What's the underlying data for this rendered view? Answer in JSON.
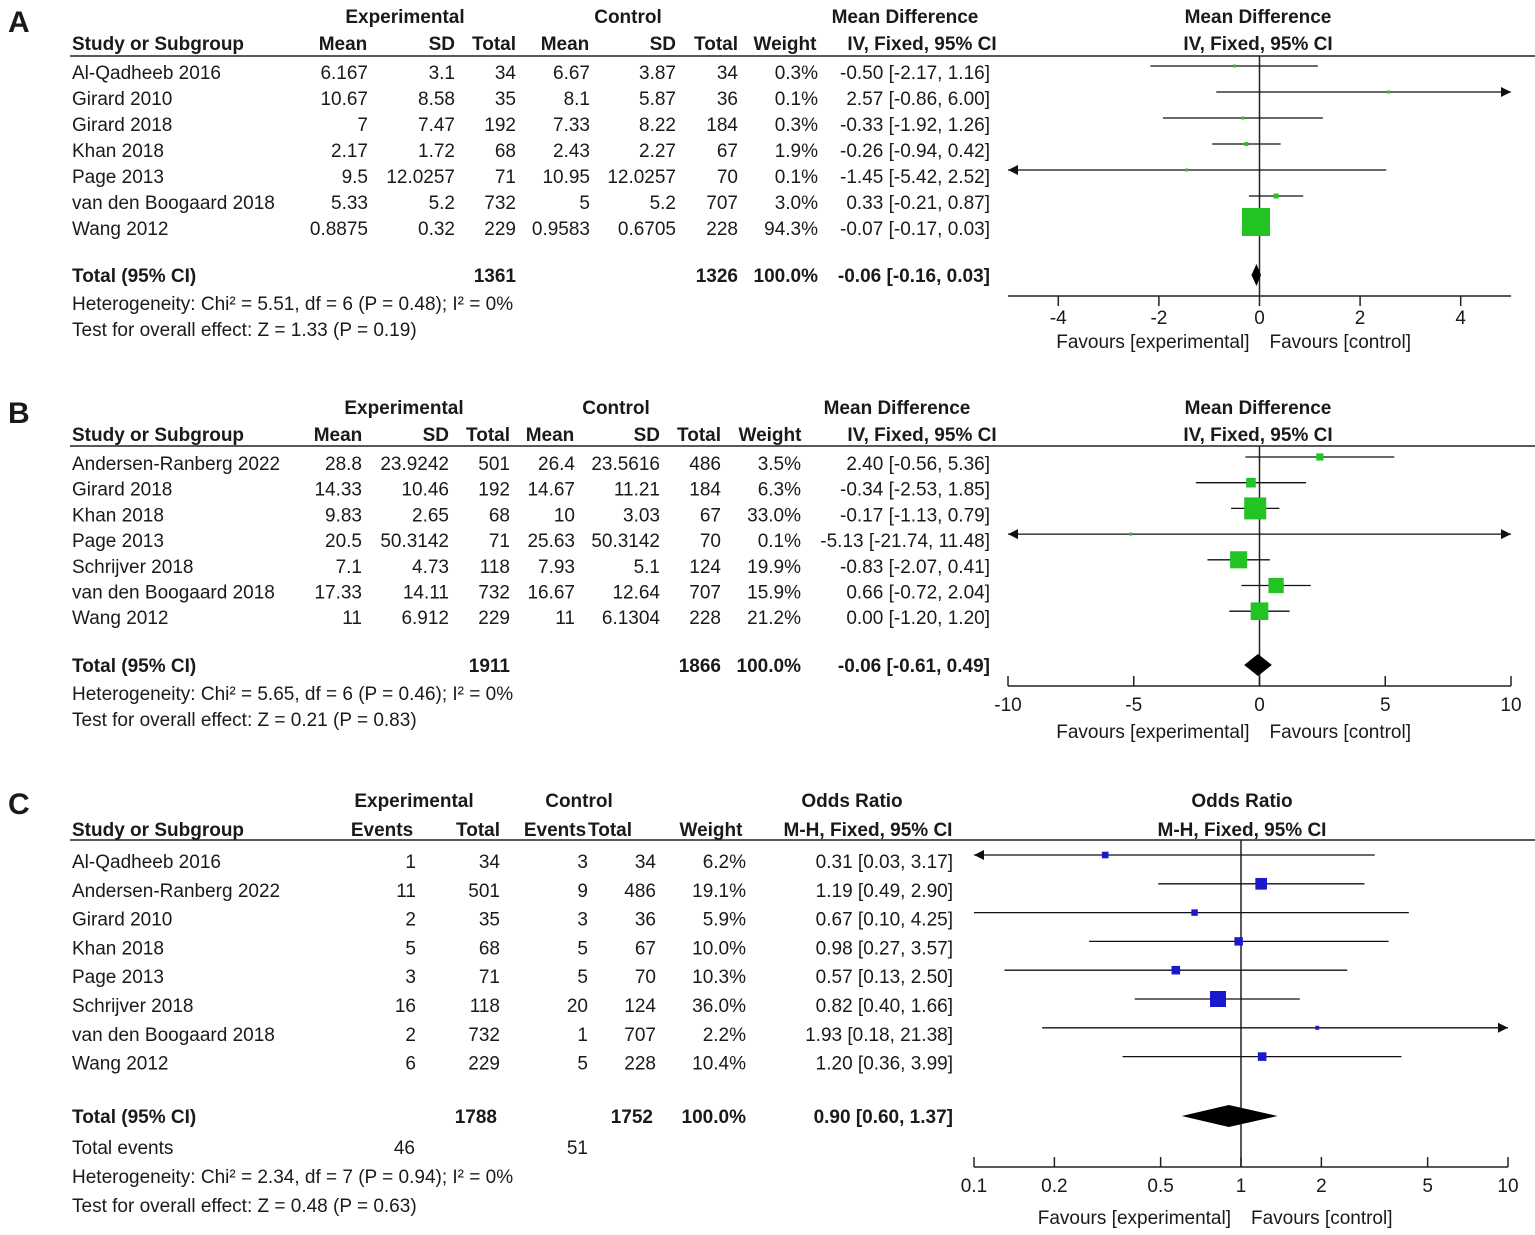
{
  "chart_data": [
    {
      "panel": "A",
      "type": "forest",
      "headers": {
        "group1": "Experimental",
        "group2": "Control",
        "table_effect": "Mean Difference",
        "plot_effect": "Mean Difference",
        "study": "Study or Subgroup",
        "cols": [
          "Mean",
          "SD",
          "Total",
          "Mean",
          "SD",
          "Total",
          "Weight",
          "IV, Fixed, 95% CI"
        ],
        "plot_method": "IV, Fixed, 95% CI"
      },
      "studies": [
        {
          "name": "Al-Qadheeb 2016",
          "cells": [
            "6.167",
            "3.1",
            "34",
            "6.67",
            "3.87",
            "34",
            "0.3%",
            "-0.50 [-2.17, 1.16]"
          ],
          "est": -0.5,
          "lo": -2.17,
          "hi": 1.16,
          "w": 0.3
        },
        {
          "name": "Girard 2010",
          "cells": [
            "10.67",
            "8.58",
            "35",
            "8.1",
            "5.87",
            "36",
            "0.1%",
            "2.57 [-0.86, 6.00]"
          ],
          "est": 2.57,
          "lo": -0.86,
          "hi": 6.0,
          "w": 0.1
        },
        {
          "name": "Girard 2018",
          "cells": [
            "7",
            "7.47",
            "192",
            "7.33",
            "8.22",
            "184",
            "0.3%",
            "-0.33 [-1.92, 1.26]"
          ],
          "est": -0.33,
          "lo": -1.92,
          "hi": 1.26,
          "w": 0.3
        },
        {
          "name": "Khan 2018",
          "cells": [
            "2.17",
            "1.72",
            "68",
            "2.43",
            "2.27",
            "67",
            "1.9%",
            "-0.26 [-0.94, 0.42]"
          ],
          "est": -0.26,
          "lo": -0.94,
          "hi": 0.42,
          "w": 1.9
        },
        {
          "name": "Page 2013",
          "cells": [
            "9.5",
            "12.0257",
            "71",
            "10.95",
            "12.0257",
            "70",
            "0.1%",
            "-1.45 [-5.42, 2.52]"
          ],
          "est": -1.45,
          "lo": -5.42,
          "hi": 2.52,
          "w": 0.1
        },
        {
          "name": "van den Boogaard 2018",
          "cells": [
            "5.33",
            "5.2",
            "732",
            "5",
            "5.2",
            "707",
            "3.0%",
            "0.33 [-0.21, 0.87]"
          ],
          "est": 0.33,
          "lo": -0.21,
          "hi": 0.87,
          "w": 3.0
        },
        {
          "name": "Wang 2012",
          "cells": [
            "0.8875",
            "0.32",
            "229",
            "0.9583",
            "0.6705",
            "228",
            "94.3%",
            "-0.07 [-0.17, 0.03]"
          ],
          "est": -0.07,
          "lo": -0.17,
          "hi": 0.03,
          "w": 94.3
        }
      ],
      "total": {
        "label": "Total (95% CI)",
        "n1": "1361",
        "n2": "1326",
        "weight": "100.0%",
        "ci": "-0.06 [-0.16, 0.03]",
        "est": -0.06,
        "lo": -0.16,
        "hi": 0.03
      },
      "total_events": null,
      "heterogeneity": "Heterogeneity: Chi² = 5.51, df = 6 (P = 0.48); I² = 0%",
      "overall": "Test for overall effect: Z = 1.33 (P = 0.19)",
      "axis": {
        "scale": "linear",
        "min": -5,
        "max": 5,
        "ticks": [
          -4,
          -2,
          0,
          2,
          4
        ],
        "tick_labels": [
          "-4",
          "-2",
          "0",
          "2",
          "4"
        ]
      },
      "favours_left": "Favours [experimental]",
      "favours_right": "Favours [control]",
      "marker_color": "#22c322"
    },
    {
      "panel": "B",
      "type": "forest",
      "headers": {
        "group1": "Experimental",
        "group2": "Control",
        "table_effect": "Mean Difference",
        "plot_effect": "Mean Difference",
        "study": "Study or Subgroup",
        "cols": [
          "Mean",
          "SD",
          "Total",
          "Mean",
          "SD",
          "Total",
          "Weight",
          "IV, Fixed, 95% CI"
        ],
        "plot_method": "IV, Fixed, 95% CI"
      },
      "studies": [
        {
          "name": "Andersen-Ranberg 2022",
          "cells": [
            "28.8",
            "23.9242",
            "501",
            "26.4",
            "23.5616",
            "486",
            "3.5%",
            "2.40 [-0.56, 5.36]"
          ],
          "est": 2.4,
          "lo": -0.56,
          "hi": 5.36,
          "w": 3.5
        },
        {
          "name": "Girard 2018",
          "cells": [
            "14.33",
            "10.46",
            "192",
            "14.67",
            "11.21",
            "184",
            "6.3%",
            "-0.34 [-2.53, 1.85]"
          ],
          "est": -0.34,
          "lo": -2.53,
          "hi": 1.85,
          "w": 6.3
        },
        {
          "name": "Khan 2018",
          "cells": [
            "9.83",
            "2.65",
            "68",
            "10",
            "3.03",
            "67",
            "33.0%",
            "-0.17 [-1.13, 0.79]"
          ],
          "est": -0.17,
          "lo": -1.13,
          "hi": 0.79,
          "w": 33.0
        },
        {
          "name": "Page 2013",
          "cells": [
            "20.5",
            "50.3142",
            "71",
            "25.63",
            "50.3142",
            "70",
            "0.1%",
            "-5.13 [-21.74, 11.48]"
          ],
          "est": -5.13,
          "lo": -21.74,
          "hi": 11.48,
          "w": 0.1
        },
        {
          "name": "Schrijver 2018",
          "cells": [
            "7.1",
            "4.73",
            "118",
            "7.93",
            "5.1",
            "124",
            "19.9%",
            "-0.83 [-2.07, 0.41]"
          ],
          "est": -0.83,
          "lo": -2.07,
          "hi": 0.41,
          "w": 19.9
        },
        {
          "name": "van den Boogaard 2018",
          "cells": [
            "17.33",
            "14.11",
            "732",
            "16.67",
            "12.64",
            "707",
            "15.9%",
            "0.66 [-0.72, 2.04]"
          ],
          "est": 0.66,
          "lo": -0.72,
          "hi": 2.04,
          "w": 15.9
        },
        {
          "name": "Wang 2012",
          "cells": [
            "11",
            "6.912",
            "229",
            "11",
            "6.1304",
            "228",
            "21.2%",
            "0.00 [-1.20, 1.20]"
          ],
          "est": 0.0,
          "lo": -1.2,
          "hi": 1.2,
          "w": 21.2
        }
      ],
      "total": {
        "label": "Total (95% CI)",
        "n1": "1911",
        "n2": "1866",
        "weight": "100.0%",
        "ci": "-0.06 [-0.61, 0.49]",
        "est": -0.06,
        "lo": -0.61,
        "hi": 0.49
      },
      "total_events": null,
      "heterogeneity": "Heterogeneity: Chi² = 5.65, df = 6 (P = 0.46); I² = 0%",
      "overall": "Test for overall effect: Z = 0.21 (P = 0.83)",
      "axis": {
        "scale": "linear",
        "min": -10,
        "max": 10,
        "ticks": [
          -10,
          -5,
          0,
          5,
          10
        ],
        "tick_labels": [
          "-10",
          "-5",
          "0",
          "5",
          "10"
        ]
      },
      "favours_left": "Favours [experimental]",
      "favours_right": "Favours [control]",
      "marker_color": "#22c322"
    },
    {
      "panel": "C",
      "type": "forest",
      "headers": {
        "group1": "Experimental",
        "group2": "Control",
        "table_effect": "Odds Ratio",
        "plot_effect": "Odds Ratio",
        "study": "Study or Subgroup",
        "cols": [
          "Events",
          "Total",
          "Events",
          "Total",
          "Weight",
          "M-H, Fixed, 95% CI"
        ],
        "plot_method": "M-H, Fixed, 95% CI"
      },
      "studies": [
        {
          "name": "Al-Qadheeb 2016",
          "cells": [
            "1",
            "34",
            "3",
            "34",
            "6.2%",
            "0.31 [0.03, 3.17]"
          ],
          "est": 0.31,
          "lo": 0.03,
          "hi": 3.17,
          "w": 6.2
        },
        {
          "name": "Andersen-Ranberg 2022",
          "cells": [
            "11",
            "501",
            "9",
            "486",
            "19.1%",
            "1.19 [0.49, 2.90]"
          ],
          "est": 1.19,
          "lo": 0.49,
          "hi": 2.9,
          "w": 19.1
        },
        {
          "name": "Girard 2010",
          "cells": [
            "2",
            "35",
            "3",
            "36",
            "5.9%",
            "0.67 [0.10, 4.25]"
          ],
          "est": 0.67,
          "lo": 0.1,
          "hi": 4.25,
          "w": 5.9
        },
        {
          "name": "Khan 2018",
          "cells": [
            "5",
            "68",
            "5",
            "67",
            "10.0%",
            "0.98 [0.27, 3.57]"
          ],
          "est": 0.98,
          "lo": 0.27,
          "hi": 3.57,
          "w": 10.0
        },
        {
          "name": "Page 2013",
          "cells": [
            "3",
            "71",
            "5",
            "70",
            "10.3%",
            "0.57 [0.13, 2.50]"
          ],
          "est": 0.57,
          "lo": 0.13,
          "hi": 2.5,
          "w": 10.3
        },
        {
          "name": "Schrijver 2018",
          "cells": [
            "16",
            "118",
            "20",
            "124",
            "36.0%",
            "0.82 [0.40, 1.66]"
          ],
          "est": 0.82,
          "lo": 0.4,
          "hi": 1.66,
          "w": 36.0
        },
        {
          "name": "van den Boogaard 2018",
          "cells": [
            "2",
            "732",
            "1",
            "707",
            "2.2%",
            "1.93 [0.18, 21.38]"
          ],
          "est": 1.93,
          "lo": 0.18,
          "hi": 21.38,
          "w": 2.2
        },
        {
          "name": "Wang 2012",
          "cells": [
            "6",
            "229",
            "5",
            "228",
            "10.4%",
            "1.20 [0.36, 3.99]"
          ],
          "est": 1.2,
          "lo": 0.36,
          "hi": 3.99,
          "w": 10.4
        }
      ],
      "total": {
        "label": "Total (95% CI)",
        "n1": "1788",
        "n2": "1752",
        "weight": "100.0%",
        "ci": "0.90 [0.60, 1.37]",
        "est": 0.9,
        "lo": 0.6,
        "hi": 1.37
      },
      "total_events": {
        "label": "Total events",
        "e1": "46",
        "e2": "51"
      },
      "heterogeneity": "Heterogeneity: Chi² = 2.34, df = 7 (P = 0.94); I² = 0%",
      "overall": "Test for overall effect: Z = 0.48 (P = 0.63)",
      "axis": {
        "scale": "log",
        "min": 0.1,
        "max": 10,
        "ticks": [
          0.1,
          0.2,
          0.5,
          1,
          2,
          5,
          10
        ],
        "tick_labels": [
          "0.1",
          "0.2",
          "0.5",
          "1",
          "2",
          "5",
          "10"
        ]
      },
      "favours_left": "Favours [experimental]",
      "favours_right": "Favours [control]",
      "marker_color": "#1a1acc"
    }
  ]
}
